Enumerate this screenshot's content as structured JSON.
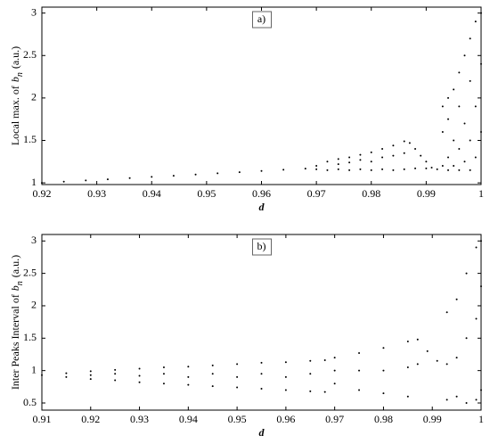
{
  "chart_data": [
    {
      "type": "scatter",
      "annotation": "a)",
      "xlabel": "d",
      "ylabel": {
        "before": "Local max. of",
        "var": "b",
        "sub": "n",
        "after": "(a.u.)"
      },
      "xlim": [
        0.92,
        1.0
      ],
      "ylim": [
        0.98,
        3.07
      ],
      "xticks": [
        0.92,
        0.93,
        0.94,
        0.95,
        0.96,
        0.97,
        0.98,
        0.99,
        1
      ],
      "yticks": [
        1,
        1.5,
        2,
        2.5,
        3
      ],
      "series": [
        {
          "color": "#000000",
          "x": [
            0.92,
            0.924,
            0.928,
            0.932,
            0.936,
            0.94,
            0.944,
            0.948,
            0.952,
            0.956,
            0.96,
            0.964,
            0.968,
            0.97,
            0.97,
            0.972,
            0.972,
            0.974,
            0.974,
            0.974,
            0.976,
            0.976,
            0.976,
            0.978,
            0.978,
            0.978,
            0.98,
            0.98,
            0.98,
            0.982,
            0.982,
            0.982,
            0.984,
            0.984,
            0.984,
            0.986,
            0.986,
            0.986,
            0.987,
            0.988,
            0.989,
            0.99,
            0.991,
            0.988,
            0.99,
            0.992,
            0.993,
            0.993,
            0.993,
            0.994,
            0.994,
            0.994,
            0.995,
            0.995,
            0.995,
            0.996,
            0.996,
            0.996,
            0.997,
            0.997,
            0.997,
            0.998,
            0.998,
            0.998,
            0.999,
            0.999,
            0.999,
            1.0,
            1.0,
            1.0,
            0.994,
            0.996,
            0.998
          ],
          "y": [
            1.0,
            1.014,
            1.028,
            1.042,
            1.056,
            1.07,
            1.084,
            1.098,
            1.112,
            1.126,
            1.14,
            1.154,
            1.168,
            1.16,
            1.2,
            1.15,
            1.25,
            1.16,
            1.28,
            1.22,
            1.15,
            1.3,
            1.24,
            1.16,
            1.33,
            1.27,
            1.15,
            1.36,
            1.25,
            1.16,
            1.4,
            1.3,
            1.15,
            1.44,
            1.32,
            1.16,
            1.49,
            1.35,
            1.47,
            1.4,
            1.32,
            1.25,
            1.18,
            1.17,
            1.17,
            1.16,
            1.2,
            1.6,
            1.9,
            1.3,
            1.75,
            2.0,
            1.2,
            1.5,
            2.1,
            1.4,
            1.9,
            2.3,
            1.25,
            1.7,
            2.5,
            1.5,
            2.2,
            2.7,
            1.3,
            1.9,
            2.9,
            1.6,
            2.4,
            3.0,
            1.15,
            1.15,
            1.15
          ]
        }
      ]
    },
    {
      "type": "scatter",
      "annotation": "b)",
      "xlabel": "d",
      "ylabel": {
        "before": "Inter Peaks Interval of",
        "var": "b",
        "sub": "n",
        "after": "(a.u.)"
      },
      "xlim": [
        0.91,
        1.0
      ],
      "ylim": [
        0.39,
        3.1
      ],
      "xticks": [
        0.91,
        0.92,
        0.93,
        0.94,
        0.95,
        0.96,
        0.97,
        0.98,
        0.99,
        1
      ],
      "yticks": [
        0.5,
        1,
        1.5,
        2,
        2.5,
        3
      ],
      "series": [
        {
          "color": "#000000",
          "x": [
            0.91,
            0.915,
            0.915,
            0.92,
            0.92,
            0.92,
            0.925,
            0.925,
            0.925,
            0.93,
            0.93,
            0.93,
            0.935,
            0.935,
            0.935,
            0.94,
            0.94,
            0.94,
            0.945,
            0.945,
            0.945,
            0.95,
            0.95,
            0.95,
            0.955,
            0.955,
            0.955,
            0.96,
            0.96,
            0.96,
            0.965,
            0.965,
            0.965,
            0.968,
            0.968,
            0.97,
            0.97,
            0.97,
            0.975,
            0.975,
            0.975,
            0.98,
            0.98,
            0.98,
            0.985,
            0.985,
            0.985,
            0.987,
            0.987,
            0.989,
            0.991,
            0.993,
            0.993,
            0.993,
            0.995,
            0.995,
            0.995,
            0.997,
            0.997,
            0.997,
            0.999,
            0.999,
            0.999,
            1.0,
            1.0,
            1.0
          ],
          "y": [
            0.93,
            0.9,
            0.96,
            0.87,
            0.93,
            0.99,
            0.85,
            0.95,
            1.01,
            0.82,
            0.92,
            1.03,
            0.8,
            0.95,
            1.05,
            0.78,
            0.9,
            1.06,
            0.76,
            0.95,
            1.08,
            0.74,
            0.9,
            1.1,
            0.72,
            0.95,
            1.12,
            0.7,
            0.9,
            1.13,
            0.68,
            0.95,
            1.15,
            0.67,
            1.16,
            0.8,
            1.0,
            1.2,
            0.7,
            1.0,
            1.27,
            0.65,
            1.0,
            1.35,
            0.6,
            1.05,
            1.45,
            1.48,
            1.1,
            1.3,
            1.15,
            0.55,
            1.1,
            1.9,
            0.6,
            1.2,
            2.1,
            0.5,
            1.5,
            2.5,
            0.55,
            1.8,
            2.9,
            0.7,
            2.3,
            3.0
          ]
        }
      ]
    }
  ]
}
